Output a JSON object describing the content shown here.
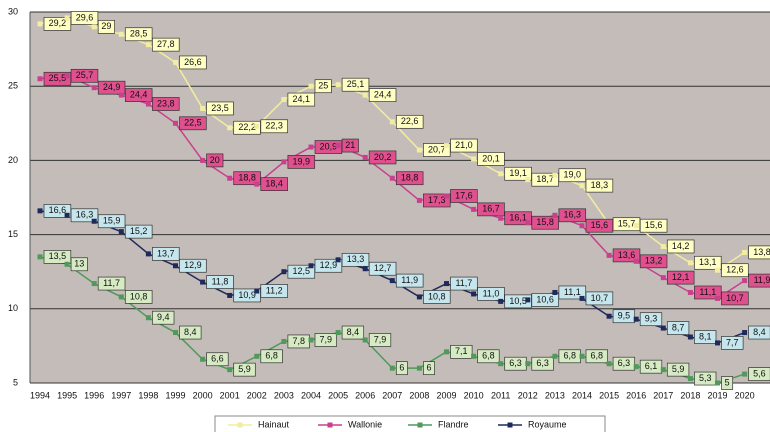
{
  "chart_data": {
    "type": "line",
    "categories": [
      "1994",
      "1995",
      "1996",
      "1997",
      "1998",
      "1999",
      "2000",
      "2001",
      "2002",
      "2003",
      "2004",
      "2005",
      "2006",
      "2007",
      "2008",
      "2009",
      "2010",
      "2011",
      "2012",
      "2013",
      "2014",
      "2015",
      "2016",
      "2017",
      "2018",
      "2019",
      "2020"
    ],
    "ylim": [
      5,
      30
    ],
    "yticks": [
      5,
      10,
      15,
      20,
      25,
      30
    ],
    "grid": true,
    "series": [
      {
        "name": "Hainaut",
        "color": "#f2eda0",
        "label_fill": "#ffffc4",
        "values": [
          29.2,
          29.6,
          29,
          28.5,
          27.8,
          26.6,
          23.5,
          22.2,
          22.3,
          24.1,
          25,
          25.1,
          24.4,
          22.6,
          20.7,
          21.0,
          20.1,
          19.1,
          18.7,
          19.0,
          18.3,
          15.7,
          15.6,
          14.2,
          13.1,
          12.6,
          13.8
        ],
        "value_labels": [
          "29,2",
          "29,6",
          "29",
          "28,5",
          "27,8",
          "26,6",
          "23,5",
          "22,2",
          "22,3",
          "24,1",
          "25",
          "25,1",
          "24,4",
          "22,6",
          "20,7",
          "21,0",
          "20,1",
          "19,1",
          "18,7",
          "19,0",
          "18,3",
          "15,7",
          "15,6",
          "14,2",
          "13,1",
          "12,6",
          "13,8"
        ]
      },
      {
        "name": "Wallonie",
        "color": "#c8408e",
        "label_fill": "#e0508e",
        "values": [
          25.5,
          25.7,
          24.9,
          24.4,
          23.8,
          22.5,
          20,
          18.8,
          18.4,
          19.9,
          20.9,
          21,
          20.2,
          18.8,
          17.3,
          17.6,
          16.7,
          16.1,
          15.8,
          16.3,
          15.6,
          13.6,
          13.2,
          12.1,
          11.1,
          10.7,
          11.9
        ],
        "value_labels": [
          "25,5",
          "25,7",
          "24,9",
          "24,4",
          "23,8",
          "22,5",
          "20",
          "18,8",
          "18,4",
          "19,9",
          "20,9",
          "21",
          "20,2",
          "18,8",
          "17,3",
          "17,6",
          "16,7",
          "16,1",
          "15,8",
          "16,3",
          "15,6",
          "13,6",
          "13,2",
          "12,1",
          "11,1",
          "10,7",
          "11,9"
        ]
      },
      {
        "name": "Flandre",
        "color": "#4f9a5a",
        "label_fill": "#d6ebc4",
        "values": [
          13.5,
          13,
          11.7,
          10.8,
          9.4,
          8.4,
          6.6,
          5.9,
          6.8,
          7.8,
          7.9,
          8.4,
          7.9,
          6,
          6,
          7.1,
          6.8,
          6.3,
          6.3,
          6.8,
          6.8,
          6.3,
          6.1,
          5.9,
          5.3,
          5,
          5.6
        ],
        "value_labels": [
          "13,5",
          "13",
          "11,7",
          "10,8",
          "9,4",
          "8,4",
          "6,6",
          "5,9",
          "6,8",
          "7,8",
          "7,9",
          "8,4",
          "7,9",
          "6",
          "6",
          "7,1",
          "6,8",
          "6,3",
          "6,3",
          "6,8",
          "6,8",
          "6,3",
          "6,1",
          "5,9",
          "5,3",
          "5",
          "5,6"
        ]
      },
      {
        "name": "Royaume",
        "color": "#1f2a5c",
        "label_fill": "#c6e6ee",
        "values": [
          16.6,
          16.3,
          15.9,
          15.2,
          13.7,
          12.9,
          11.8,
          10.9,
          11.2,
          12.5,
          12.9,
          13.3,
          12.7,
          11.9,
          10.8,
          11.7,
          11.0,
          10.5,
          10.6,
          11.1,
          10.7,
          9.5,
          9.3,
          8.7,
          8.1,
          7.7,
          8.4
        ],
        "value_labels": [
          "16,6",
          "16,3",
          "15,9",
          "15,2",
          "13,7",
          "12,9",
          "11,8",
          "10,9",
          "11,2",
          "12,5",
          "12,9",
          "13,3",
          "12,7",
          "11,9",
          "10,8",
          "11,7",
          "11,0",
          "10,5",
          "10,6",
          "11,1",
          "10,7",
          "9,5",
          "9,3",
          "8,7",
          "8,1",
          "7,7",
          "8,4"
        ]
      }
    ]
  }
}
